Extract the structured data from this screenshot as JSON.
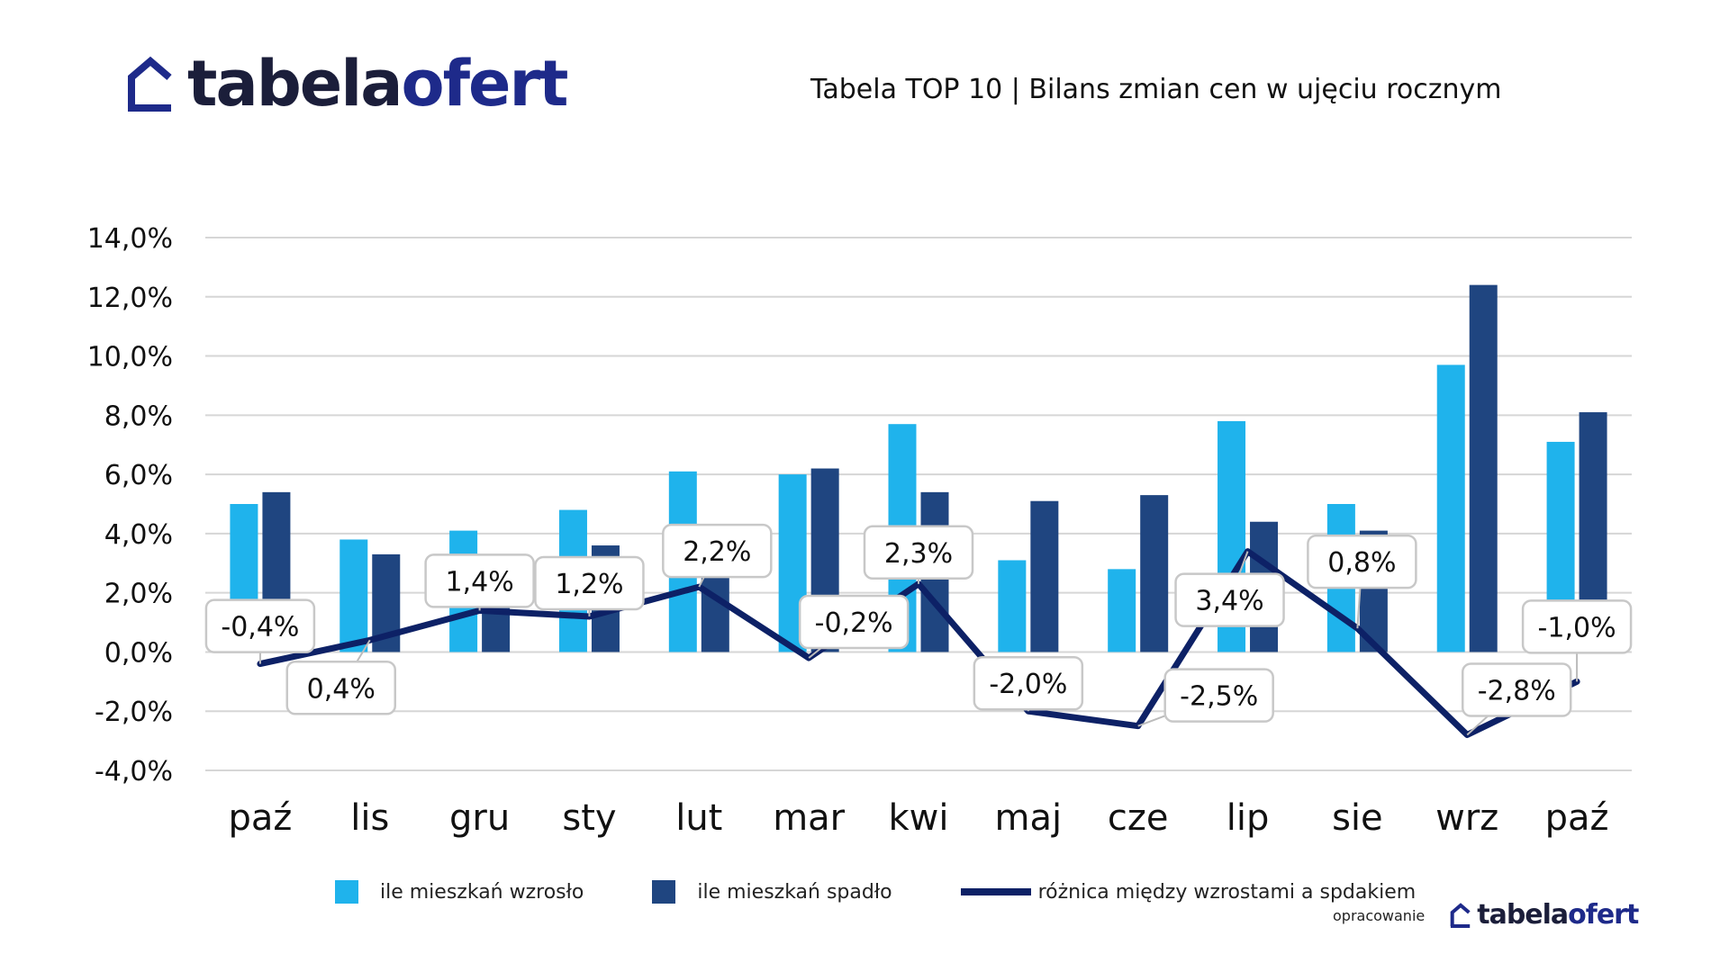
{
  "brand": {
    "name_part1": "tabela",
    "name_part2": "ofert",
    "accent_color": "#1e2a8a",
    "icon": "house-icon"
  },
  "header": {
    "title": "Tabela TOP 10 | Bilans zmian cen w ujęciu rocznym"
  },
  "footer": {
    "note": "opracowanie"
  },
  "colors": {
    "increase": "#1fb3ec",
    "decrease": "#1f4580",
    "difference": "#0d2166"
  },
  "chart_data": {
    "type": "bar",
    "categories": [
      "paź",
      "lis",
      "gru",
      "sty",
      "lut",
      "mar",
      "kwi",
      "maj",
      "cze",
      "lip",
      "sie",
      "wrz",
      "paź"
    ],
    "ylim": [
      -4,
      14
    ],
    "yticks": [
      14,
      12,
      10,
      8,
      6,
      4,
      2,
      0,
      -2,
      -4
    ],
    "ytick_labels": [
      "14,0%",
      "12,0%",
      "10,0%",
      "8,0%",
      "6,0%",
      "4,0%",
      "2,0%",
      "0,0%",
      "-2,0%",
      "-4,0%"
    ],
    "grid": true,
    "legend_position": "bottom",
    "series": [
      {
        "name": "ile mieszkań wzrosło",
        "type": "bar",
        "values": [
          5.0,
          3.8,
          4.1,
          4.8,
          6.1,
          6.0,
          7.7,
          3.1,
          2.8,
          7.8,
          5.0,
          9.7,
          7.1
        ]
      },
      {
        "name": "ile mieszkań spadło",
        "type": "bar",
        "values": [
          5.4,
          3.3,
          2.7,
          3.6,
          3.9,
          6.2,
          5.4,
          5.1,
          5.3,
          4.4,
          4.1,
          12.4,
          8.1
        ]
      },
      {
        "name": "różnica między wzrostami a spdakiem",
        "type": "line",
        "values": [
          -0.4,
          0.4,
          1.4,
          1.2,
          2.2,
          -0.2,
          2.3,
          -2.0,
          -2.5,
          3.4,
          0.8,
          -2.8,
          -1.0
        ],
        "labels": [
          "-0,4%",
          "0,4%",
          "1,4%",
          "1,2%",
          "2,2%",
          "-0,2%",
          "2,3%",
          "-2,0%",
          "-2,5%",
          "3,4%",
          "0,8%",
          "-2,8%",
          "-1,0%"
        ]
      }
    ]
  }
}
